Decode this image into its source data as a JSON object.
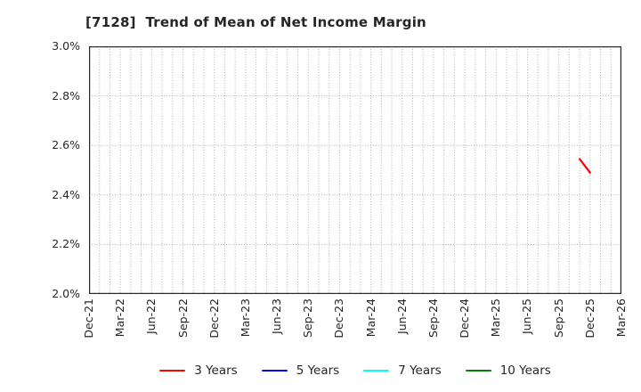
{
  "window": {
    "background": "#ffffff"
  },
  "chart_data": {
    "type": "line",
    "title": "[7128]  Trend of Mean of Net Income Margin",
    "xlabel": "",
    "ylabel": "",
    "ylim": [
      2.0,
      3.0
    ],
    "y_ticks": [
      2.0,
      2.2,
      2.4,
      2.6,
      2.8,
      3.0
    ],
    "y_tick_labels": [
      "2.0%",
      "2.2%",
      "2.4%",
      "2.6%",
      "2.8%",
      "3.0%"
    ],
    "x_tick_labels": [
      "Dec-21",
      "Mar-22",
      "Jun-22",
      "Sep-22",
      "Dec-22",
      "Mar-23",
      "Jun-23",
      "Sep-23",
      "Dec-23",
      "Mar-24",
      "Jun-24",
      "Sep-24",
      "Dec-24",
      "Mar-25",
      "Jun-25",
      "Sep-25",
      "Dec-25",
      "Mar-26"
    ],
    "grid": true,
    "grid_style": "dotted",
    "grid_minor_x": "monthly",
    "grid_color": "#b0b0b0",
    "axis_color": "#262626",
    "legend_position": "bottom",
    "series": [
      {
        "name": "3 Years",
        "color": "#ff0000",
        "points": [
          {
            "x": "Nov-25",
            "y": 2.545
          },
          {
            "x": "Dec-25",
            "y": 2.49
          }
        ]
      },
      {
        "name": "5 Years",
        "color": "#0000ff",
        "points": []
      },
      {
        "name": "7 Years",
        "color": "#00ffff",
        "points": []
      },
      {
        "name": "10 Years",
        "color": "#008000",
        "points": []
      }
    ]
  }
}
